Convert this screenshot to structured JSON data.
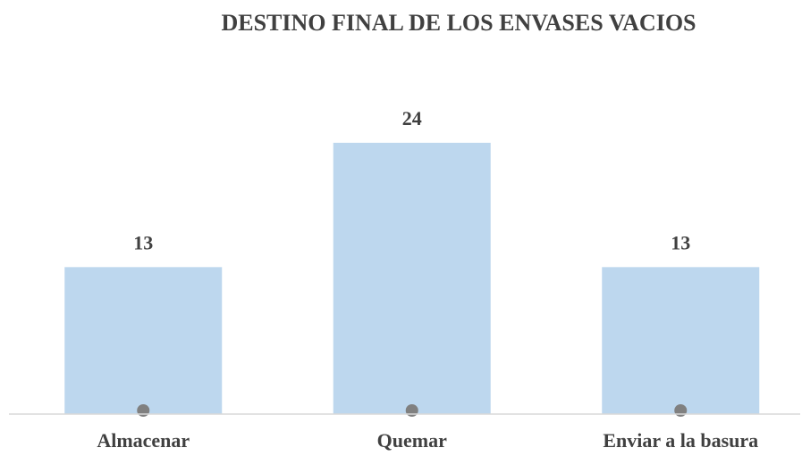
{
  "chart_data": {
    "type": "bar",
    "title": "DESTINO FINAL DE LOS ENVASES VACIOS",
    "categories": [
      "Almacenar",
      "Quemar",
      "Enviar a la basura"
    ],
    "values": [
      13,
      24,
      13
    ],
    "color": "#bdd7ee",
    "ylim": [
      0,
      24
    ]
  }
}
